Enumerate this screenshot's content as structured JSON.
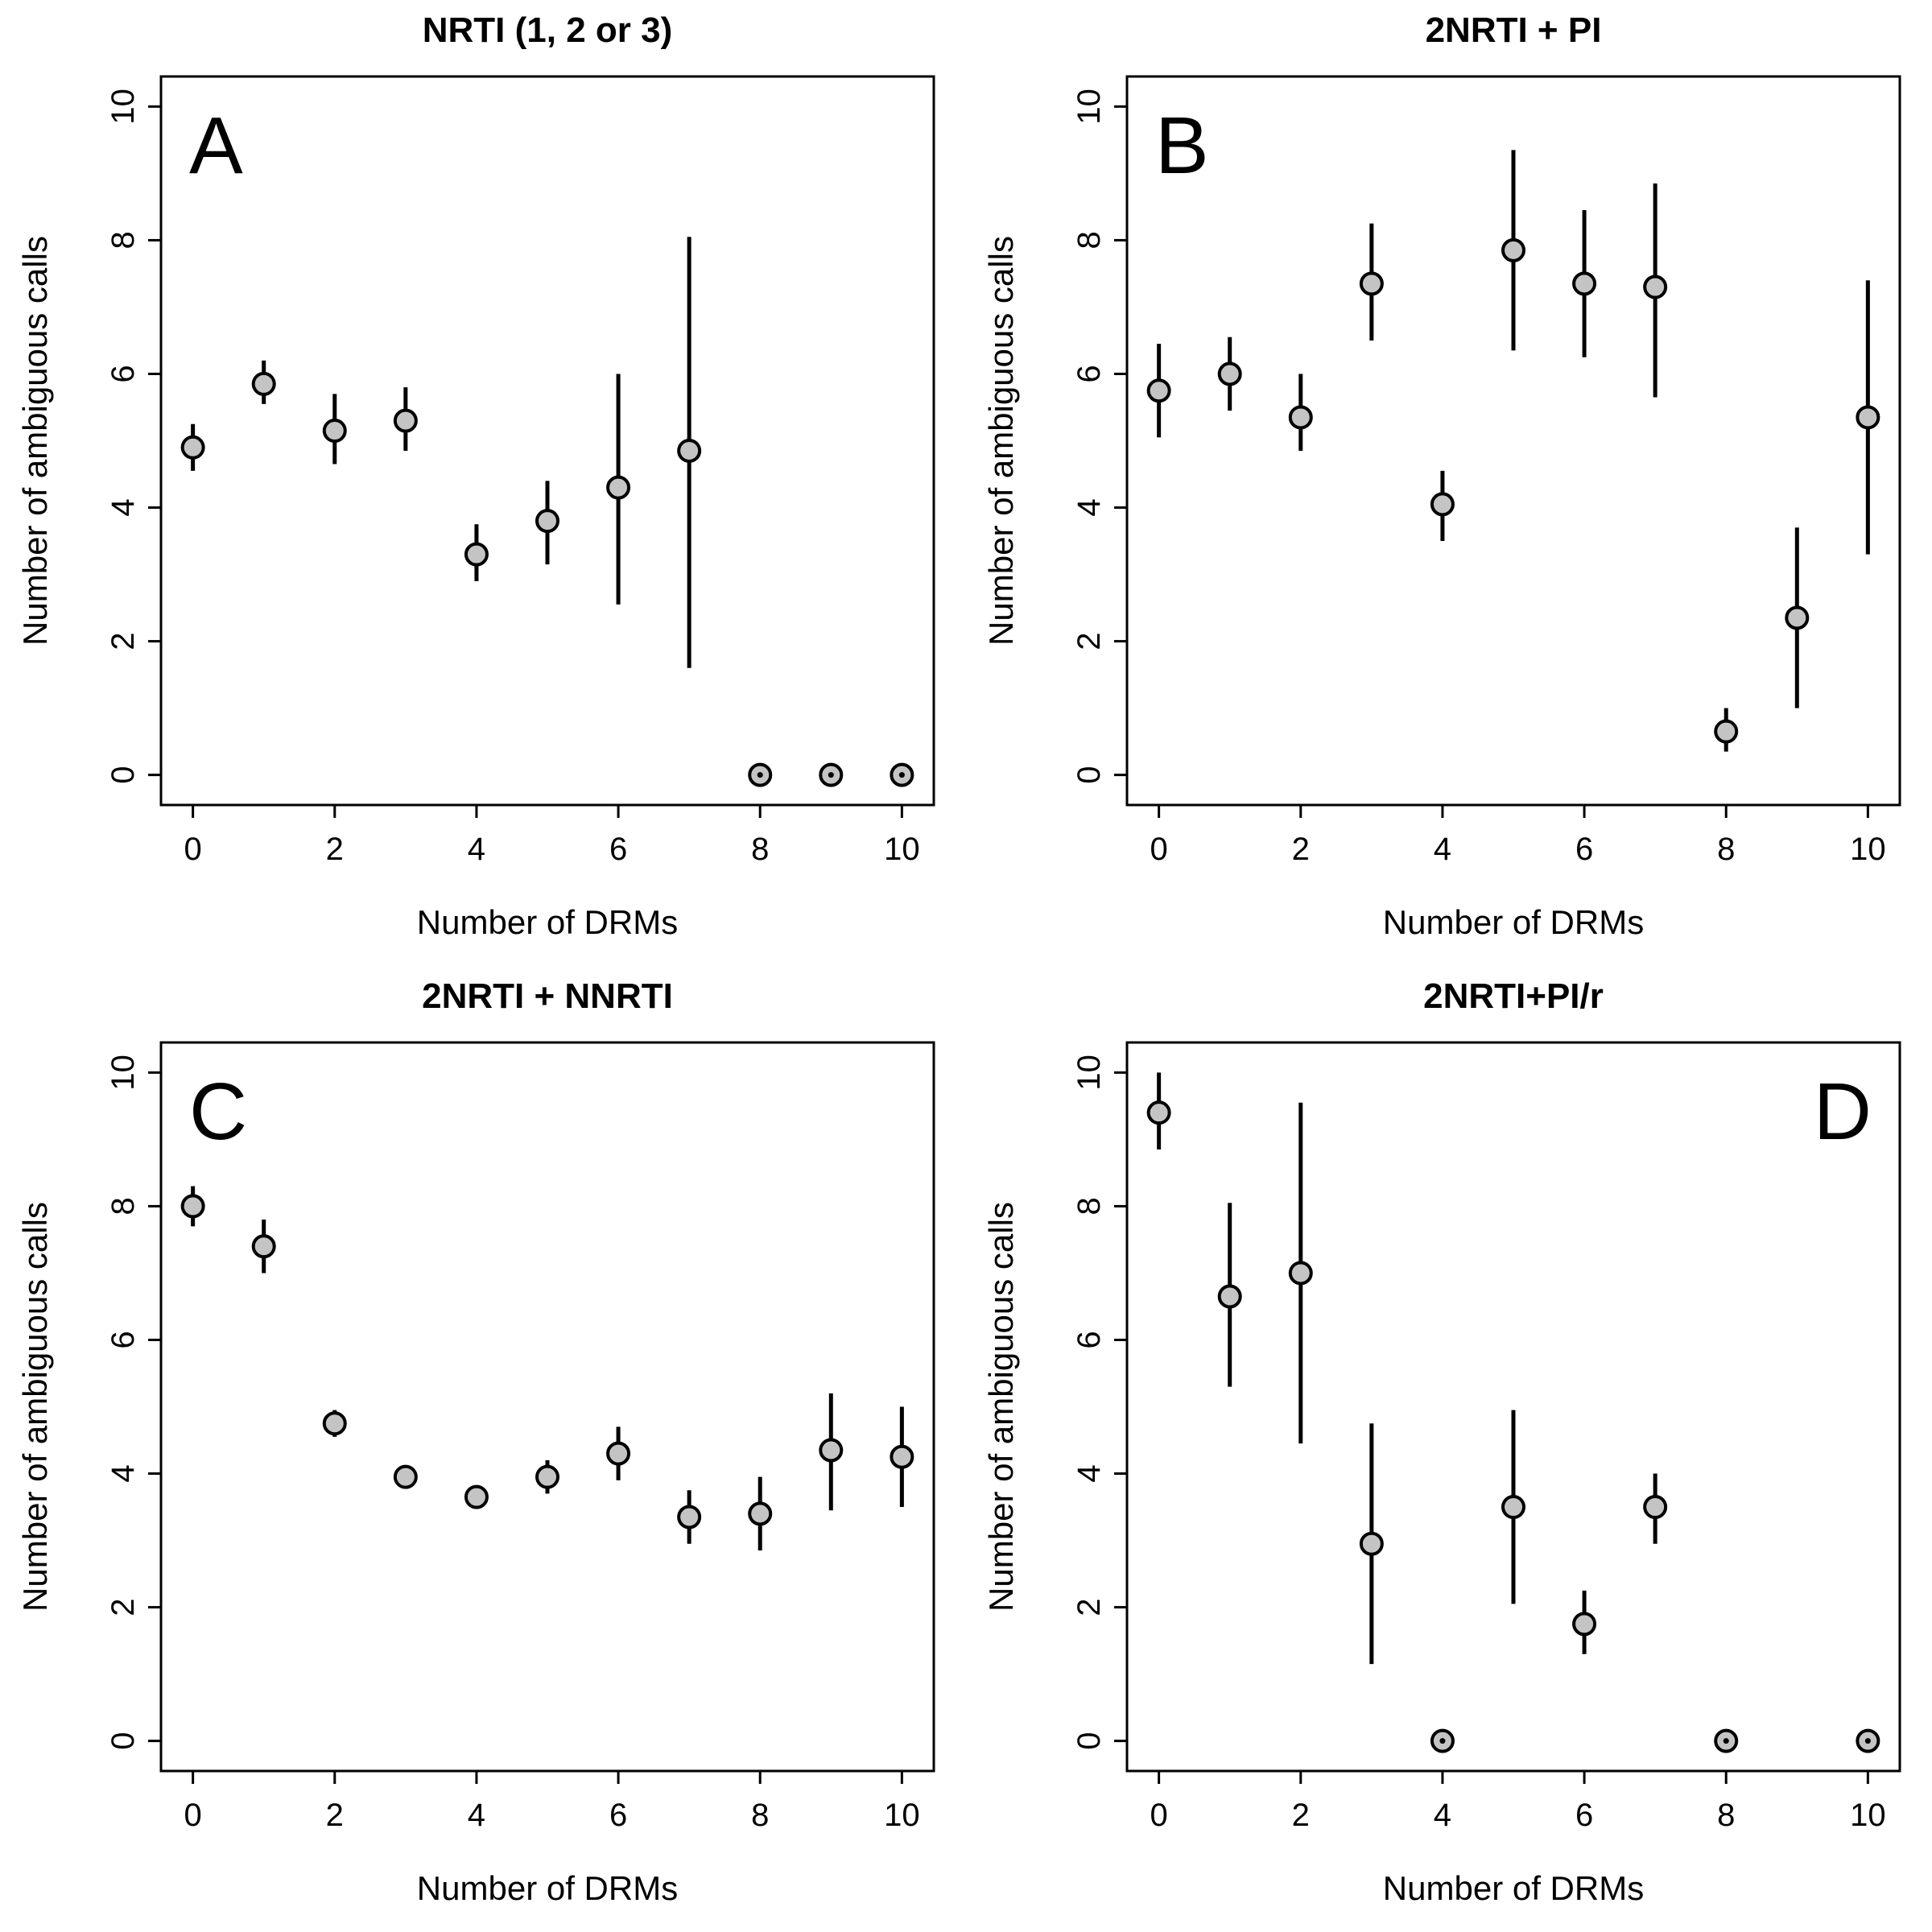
{
  "figure": {
    "background": "#ffffff",
    "axis_color": "#000000",
    "point_fill": "#c4c4c4",
    "point_stroke": "#000000",
    "errorbar_color": "#000000"
  },
  "chart_data": [
    {
      "type": "scatter",
      "panel_letter": "A",
      "letter_side": "left",
      "title": "NRTI (1, 2 or 3)",
      "xlabel": "Number of DRMs",
      "ylabel": "Number of ambiguous calls",
      "xlim": [
        0,
        10
      ],
      "ylim": [
        0,
        10
      ],
      "xticks": [
        0,
        2,
        4,
        6,
        8,
        10
      ],
      "yticks": [
        0,
        2,
        4,
        6,
        8,
        10
      ],
      "x": [
        0,
        1,
        2,
        3,
        4,
        5,
        6,
        7,
        8,
        9,
        10
      ],
      "y": [
        4.9,
        5.85,
        5.15,
        5.3,
        3.3,
        3.8,
        4.3,
        4.85,
        0,
        0,
        0
      ],
      "err_low": [
        4.55,
        5.55,
        4.65,
        4.85,
        2.9,
        3.15,
        2.55,
        1.6,
        0,
        0,
        0
      ],
      "err_high": [
        5.25,
        6.2,
        5.7,
        5.8,
        3.75,
        4.4,
        6.0,
        8.05,
        0,
        0,
        0
      ]
    },
    {
      "type": "scatter",
      "panel_letter": "B",
      "letter_side": "left",
      "title": "2NRTI + PI",
      "xlabel": "Number of DRMs",
      "ylabel": "Number of ambiguous calls",
      "xlim": [
        0,
        10
      ],
      "ylim": [
        0,
        10
      ],
      "xticks": [
        0,
        2,
        4,
        6,
        8,
        10
      ],
      "yticks": [
        0,
        2,
        4,
        6,
        8,
        10
      ],
      "x": [
        0,
        1,
        2,
        3,
        4,
        5,
        6,
        7,
        8,
        9,
        10
      ],
      "y": [
        5.75,
        6.0,
        5.35,
        7.35,
        4.05,
        7.85,
        7.35,
        7.3,
        0.65,
        2.35,
        5.35
      ],
      "err_low": [
        5.05,
        5.45,
        4.85,
        6.5,
        3.5,
        6.35,
        6.25,
        5.65,
        0.35,
        1.0,
        3.3
      ],
      "err_high": [
        6.45,
        6.55,
        6.0,
        8.25,
        4.55,
        9.35,
        8.45,
        8.85,
        1.0,
        3.7,
        7.4
      ]
    },
    {
      "type": "scatter",
      "panel_letter": "C",
      "letter_side": "left",
      "title": "2NRTI + NNRTI",
      "xlabel": "Number of DRMs",
      "ylabel": "Number of ambiguous calls",
      "xlim": [
        0,
        10
      ],
      "ylim": [
        0,
        10
      ],
      "xticks": [
        0,
        2,
        4,
        6,
        8,
        10
      ],
      "yticks": [
        0,
        2,
        4,
        6,
        8,
        10
      ],
      "x": [
        0,
        1,
        2,
        3,
        4,
        5,
        6,
        7,
        8,
        9,
        10
      ],
      "y": [
        8.0,
        7.4,
        4.75,
        3.95,
        3.65,
        3.95,
        4.3,
        3.35,
        3.4,
        4.35,
        4.25
      ],
      "err_low": [
        7.7,
        7.0,
        4.55,
        3.8,
        3.5,
        3.7,
        3.9,
        2.95,
        2.85,
        3.45,
        3.5
      ],
      "err_high": [
        8.3,
        7.8,
        4.95,
        4.1,
        3.8,
        4.2,
        4.7,
        3.75,
        3.95,
        5.2,
        5.0
      ]
    },
    {
      "type": "scatter",
      "panel_letter": "D",
      "letter_side": "right",
      "title": "2NRTI+PI/r",
      "xlabel": "Number of DRMs",
      "ylabel": "Number of ambiguous calls",
      "xlim": [
        0,
        10
      ],
      "ylim": [
        0,
        10
      ],
      "xticks": [
        0,
        2,
        4,
        6,
        8,
        10
      ],
      "yticks": [
        0,
        2,
        4,
        6,
        8,
        10
      ],
      "x": [
        0,
        1,
        2,
        3,
        4,
        5,
        6,
        7,
        8,
        10
      ],
      "y": [
        9.4,
        6.65,
        7.0,
        2.95,
        0,
        3.5,
        1.75,
        3.5,
        0,
        0
      ],
      "err_low": [
        8.85,
        5.3,
        4.45,
        1.15,
        0,
        2.05,
        1.3,
        2.95,
        0,
        0
      ],
      "err_high": [
        10.0,
        8.05,
        9.55,
        4.75,
        0,
        4.95,
        2.25,
        4.0,
        0,
        0
      ]
    }
  ]
}
